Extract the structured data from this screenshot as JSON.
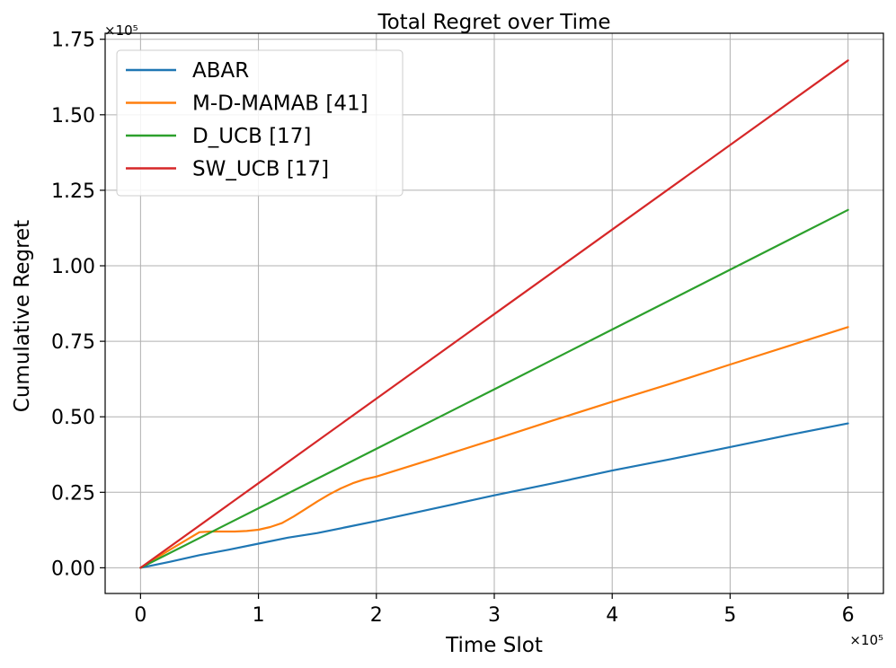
{
  "chart_data": {
    "type": "line",
    "title": "Total Regret over Time",
    "xlabel": "Time Slot",
    "ylabel": "Cumulative Regret",
    "x_offset_label": "×10⁵",
    "y_offset_label": "×10⁵",
    "xlim": [
      -0.3,
      6.3
    ],
    "ylim": [
      -0.085,
      1.77
    ],
    "x_ticks": [
      0,
      1,
      2,
      3,
      4,
      5,
      6
    ],
    "x_tick_labels": [
      "0",
      "1",
      "2",
      "3",
      "4",
      "5",
      "6"
    ],
    "y_ticks": [
      0,
      0.25,
      0.5,
      0.75,
      1.0,
      1.25,
      1.5,
      1.75
    ],
    "y_tick_labels": [
      "0.00",
      "0.25",
      "0.50",
      "0.75",
      "1.00",
      "1.25",
      "1.50",
      "1.75"
    ],
    "grid": true,
    "legend_position": "top-left",
    "series": [
      {
        "name": "ABAR",
        "color": "#1f77b4",
        "x": [
          0,
          0.25,
          0.5,
          0.75,
          1.0,
          1.25,
          1.5,
          1.75,
          2.0,
          2.5,
          3.0,
          3.5,
          4.0,
          4.5,
          5.0,
          5.5,
          6.0
        ],
        "y": [
          0,
          0.02,
          0.042,
          0.06,
          0.08,
          0.1,
          0.115,
          0.135,
          0.155,
          0.197,
          0.24,
          0.28,
          0.322,
          0.36,
          0.4,
          0.44,
          0.478
        ]
      },
      {
        "name": "M-D-MAMAB [41]",
        "color": "#ff7f0e",
        "x": [
          0,
          0.25,
          0.5,
          0.6,
          0.7,
          0.8,
          0.9,
          1.0,
          1.1,
          1.2,
          1.3,
          1.4,
          1.5,
          1.6,
          1.7,
          1.8,
          1.9,
          2.0,
          2.5,
          3.0,
          3.5,
          4.0,
          4.5,
          5.0,
          5.5,
          6.0
        ],
        "y": [
          0,
          0.06,
          0.118,
          0.12,
          0.12,
          0.12,
          0.122,
          0.126,
          0.135,
          0.148,
          0.17,
          0.195,
          0.22,
          0.243,
          0.263,
          0.28,
          0.293,
          0.302,
          0.363,
          0.425,
          0.488,
          0.55,
          0.61,
          0.673,
          0.735,
          0.797
        ]
      },
      {
        "name": "D_UCB [17]",
        "color": "#2ca02c",
        "x": [
          0,
          1,
          2,
          3,
          4,
          5,
          6
        ],
        "y": [
          0,
          0.197,
          0.394,
          0.591,
          0.789,
          0.987,
          1.185
        ]
      },
      {
        "name": "SW_UCB [17]",
        "color": "#d62728",
        "x": [
          0,
          1,
          2,
          3,
          4,
          5,
          6
        ],
        "y": [
          0,
          0.28,
          0.56,
          0.84,
          1.12,
          1.4,
          1.68
        ]
      }
    ]
  }
}
